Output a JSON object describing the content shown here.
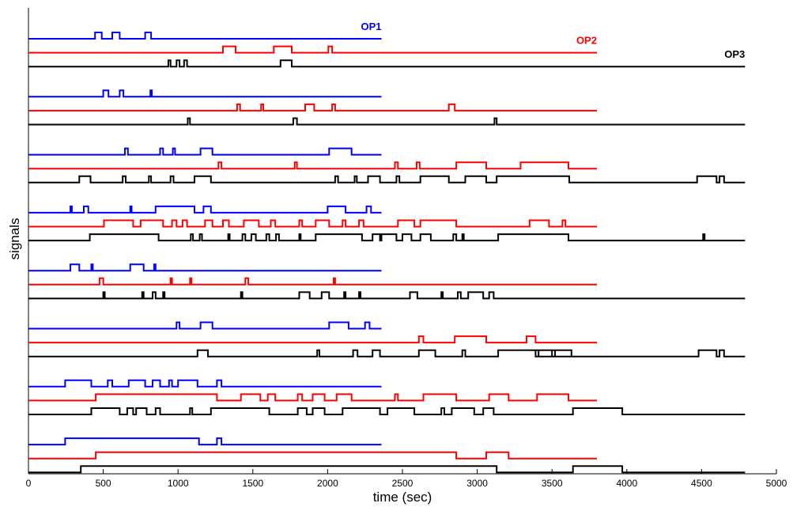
{
  "chart_data": {
    "type": "line",
    "title": "",
    "xlabel": "time (sec)",
    "ylabel": "signals",
    "xlim": [
      0,
      5000
    ],
    "xticks": [
      0,
      500,
      1000,
      1500,
      2000,
      2500,
      3000,
      3500,
      4000,
      4500,
      5000
    ],
    "xtick_labels": [
      "0",
      "500",
      "1000",
      "1500",
      "2000",
      "2500",
      "3000",
      "3500",
      "4000",
      "4500",
      "5000"
    ],
    "grid": false,
    "series": [
      {
        "name": "OP1",
        "color": "#0000ff",
        "x_end": 2360
      },
      {
        "name": "OP2",
        "color": "#ff0000",
        "x_end": 3800
      },
      {
        "name": "OP3",
        "color": "#000000",
        "x_end": 4790
      }
    ],
    "groups": [
      {
        "signals": [
          {
            "series": "OP1",
            "pulses": [
              [
                445,
                490
              ],
              [
                560,
                610
              ],
              [
                780,
                820
              ]
            ]
          },
          {
            "series": "OP2",
            "pulses": [
              [
                1300,
                1385
              ],
              [
                1640,
                1760
              ],
              [
                2005,
                2030
              ]
            ]
          },
          {
            "series": "OP3",
            "pulses": [
              [
                935,
                950
              ],
              [
                990,
                1010
              ],
              [
                1040,
                1060
              ],
              [
                1685,
                1760
              ]
            ]
          }
        ]
      },
      {
        "signals": [
          {
            "series": "OP1",
            "pulses": [
              [
                500,
                535
              ],
              [
                610,
                635
              ],
              [
                815,
                825
              ]
            ]
          },
          {
            "series": "OP2",
            "pulses": [
              [
                1395,
                1415
              ],
              [
                1555,
                1570
              ],
              [
                1850,
                1910
              ],
              [
                2030,
                2050
              ],
              [
                2810,
                2850
              ]
            ]
          },
          {
            "series": "OP3",
            "pulses": [
              [
                1065,
                1080
              ],
              [
                1770,
                1795
              ],
              [
                3115,
                3130
              ]
            ]
          }
        ]
      },
      {
        "signals": [
          {
            "series": "OP1",
            "pulses": [
              [
                645,
                665
              ],
              [
                880,
                900
              ],
              [
                965,
                980
              ],
              [
                1150,
                1230
              ],
              [
                2010,
                2160
              ]
            ]
          },
          {
            "series": "OP2",
            "pulses": [
              [
                1270,
                1290
              ],
              [
                1780,
                1795
              ],
              [
                2450,
                2470
              ],
              [
                2595,
                2615
              ],
              [
                2860,
                3060
              ],
              [
                3290,
                3610
              ]
            ]
          },
          {
            "series": "OP3",
            "pulses": [
              [
                340,
                415
              ],
              [
                630,
                650
              ],
              [
                805,
                820
              ],
              [
                950,
                970
              ],
              [
                1110,
                1220
              ],
              [
                2050,
                2070
              ],
              [
                2180,
                2195
              ],
              [
                2270,
                2350
              ],
              [
                2460,
                2480
              ],
              [
                2620,
                2810
              ],
              [
                2920,
                3060
              ],
              [
                3130,
                3615
              ],
              [
                4470,
                4600
              ],
              [
                4620,
                4650
              ]
            ]
          }
        ]
      },
      {
        "signals": [
          {
            "series": "OP1",
            "pulses": [
              [
                280,
                290
              ],
              [
                370,
                400
              ],
              [
                680,
                690
              ],
              [
                850,
                1110
              ],
              [
                1170,
                1220
              ],
              [
                2000,
                2120
              ],
              [
                2260,
                2290
              ]
            ]
          },
          {
            "series": "OP2",
            "pulses": [
              [
                505,
                700
              ],
              [
                750,
                900
              ],
              [
                960,
                990
              ],
              [
                1030,
                1060
              ],
              [
                1180,
                1230
              ],
              [
                1300,
                1340
              ],
              [
                1440,
                1540
              ],
              [
                1620,
                1650
              ],
              [
                1810,
                1830
              ],
              [
                1920,
                2010
              ],
              [
                2100,
                2120
              ],
              [
                2210,
                2240
              ],
              [
                2470,
                2580
              ],
              [
                2620,
                2860
              ],
              [
                3350,
                3480
              ],
              [
                3570,
                3590
              ]
            ]
          },
          {
            "series": "OP3",
            "pulses": [
              [
                410,
                870
              ],
              [
                1085,
                1100
              ],
              [
                1145,
                1160
              ],
              [
                1335,
                1345
              ],
              [
                1430,
                1450
              ],
              [
                1490,
                1520
              ],
              [
                1590,
                1610
              ],
              [
                1655,
                1675
              ],
              [
                1810,
                1820
              ],
              [
                1920,
                2230
              ],
              [
                2300,
                2350
              ],
              [
                2360,
                2460
              ],
              [
                2500,
                2560
              ],
              [
                2620,
                2690
              ],
              [
                2840,
                2860
              ],
              [
                2900,
                2910
              ],
              [
                3140,
                3610
              ],
              [
                4510,
                4520
              ]
            ]
          }
        ]
      },
      {
        "signals": [
          {
            "series": "OP1",
            "pulses": [
              [
                280,
                340
              ],
              [
                420,
                430
              ],
              [
                680,
                770
              ],
              [
                840,
                850
              ]
            ]
          },
          {
            "series": "OP2",
            "pulses": [
              [
                475,
                500
              ],
              [
                950,
                960
              ],
              [
                1080,
                1090
              ],
              [
                1450,
                1470
              ],
              [
                2040,
                2050
              ]
            ]
          },
          {
            "series": "OP3",
            "pulses": [
              [
                500,
                510
              ],
              [
                760,
                770
              ],
              [
                830,
                850
              ],
              [
                900,
                910
              ],
              [
                1420,
                1430
              ],
              [
                1810,
                1880
              ],
              [
                1960,
                2010
              ],
              [
                2110,
                2120
              ],
              [
                2210,
                2220
              ],
              [
                2550,
                2600
              ],
              [
                2760,
                2770
              ],
              [
                2870,
                2890
              ],
              [
                2940,
                3040
              ],
              [
                3080,
                3110
              ]
            ]
          }
        ]
      },
      {
        "signals": [
          {
            "series": "OP1",
            "pulses": [
              [
                990,
                1010
              ],
              [
                1150,
                1230
              ],
              [
                2010,
                2140
              ],
              [
                2250,
                2280
              ]
            ]
          },
          {
            "series": "OP2",
            "pulses": [
              [
                2610,
                2640
              ],
              [
                2850,
                3060
              ],
              [
                3330,
                3390
              ]
            ]
          },
          {
            "series": "OP3",
            "pulses": [
              [
                1130,
                1200
              ],
              [
                1930,
                1945
              ],
              [
                2170,
                2200
              ],
              [
                2300,
                2350
              ],
              [
                2610,
                2720
              ],
              [
                2900,
                2920
              ],
              [
                3140,
                3630
              ],
              [
                3390,
                3410
              ],
              [
                3500,
                3520
              ],
              [
                4480,
                4600
              ],
              [
                4620,
                4650
              ]
            ]
          }
        ]
      },
      {
        "signals": [
          {
            "series": "OP1",
            "pulses": [
              [
                245,
                420
              ],
              [
                530,
                560
              ],
              [
                670,
                780
              ],
              [
                830,
                880
              ],
              [
                940,
                960
              ],
              [
                1000,
                1130
              ],
              [
                1260,
                1290
              ]
            ]
          },
          {
            "series": "OP2",
            "pulses": [
              [
                450,
                1260
              ],
              [
                1420,
                1550
              ],
              [
                1600,
                1650
              ],
              [
                1800,
                1830
              ],
              [
                1900,
                1980
              ],
              [
                2060,
                2160
              ],
              [
                2450,
                2470
              ],
              [
                2640,
                2860
              ],
              [
                3080,
                3210
              ],
              [
                3400,
                3610
              ]
            ]
          },
          {
            "series": "OP3",
            "pulses": [
              [
                420,
                610
              ],
              [
                660,
                700
              ],
              [
                720,
                790
              ],
              [
                850,
                880
              ],
              [
                1080,
                1095
              ],
              [
                1220,
                1610
              ],
              [
                1800,
                1860
              ],
              [
                1900,
                1980
              ],
              [
                2100,
                2350
              ],
              [
                2400,
                2580
              ],
              [
                2760,
                2780
              ],
              [
                2830,
                2980
              ],
              [
                3040,
                3110
              ],
              [
                3640,
                3970
              ]
            ]
          }
        ]
      },
      {
        "signals": [
          {
            "series": "OP1",
            "pulses": [
              [
                245,
                1140
              ],
              [
                1260,
                1290
              ]
            ]
          },
          {
            "series": "OP2",
            "pulses": [
              [
                450,
                2860
              ],
              [
                3060,
                3210
              ]
            ]
          },
          {
            "series": "OP3",
            "pulses": [
              [
                350,
                3130
              ],
              [
                3640,
                3970
              ]
            ]
          }
        ]
      }
    ],
    "annotations": [
      {
        "text": "OP1",
        "series": "OP1",
        "group": 0
      },
      {
        "text": "OP2",
        "series": "OP2",
        "group": 0
      },
      {
        "text": "OP3",
        "series": "OP3",
        "group": 0
      }
    ]
  }
}
